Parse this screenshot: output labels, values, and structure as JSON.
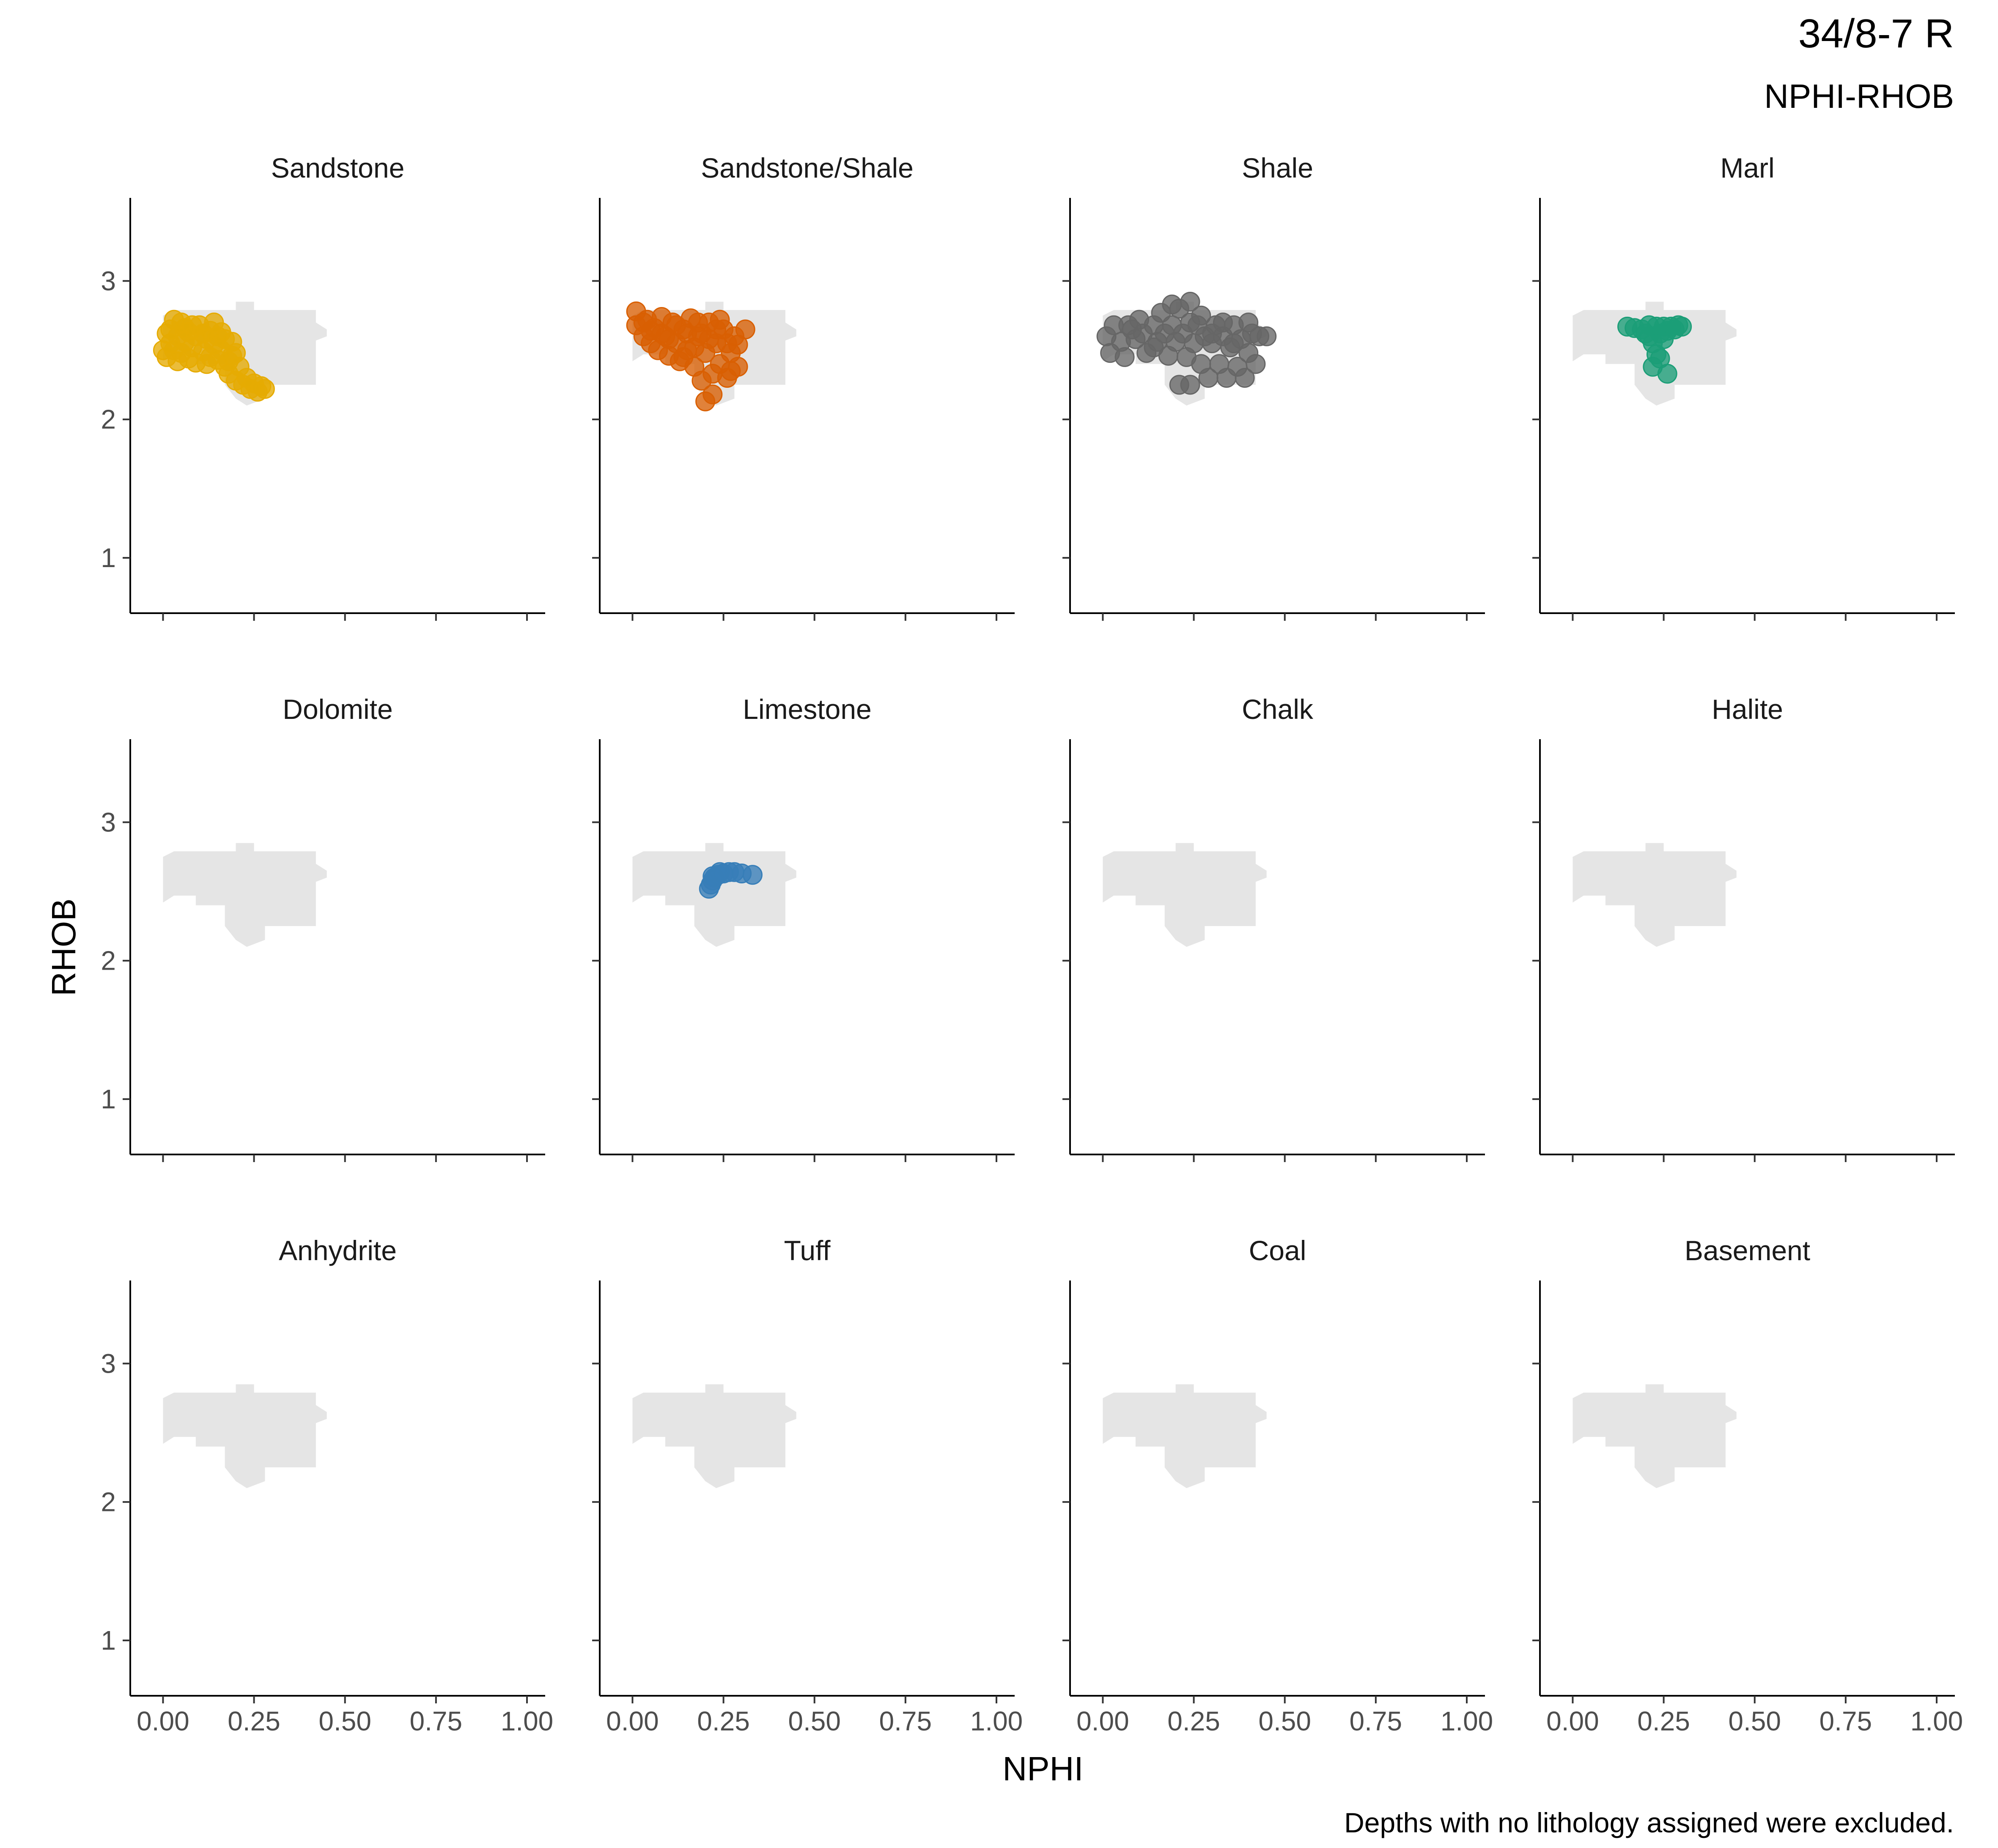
{
  "title": "34/8-7 R",
  "subtitle": "NPHI-RHOB",
  "caption": "Depths with no lithology assigned were excluded.",
  "chart_data": {
    "type": "scatter",
    "layout": "facet_wrap 3 rows x 4 columns",
    "xlabel": "NPHI",
    "ylabel": "RHOB",
    "xlim": [
      -0.09,
      1.05
    ],
    "ylim": [
      3.6,
      0.6
    ],
    "y_reversed": true,
    "x_ticks": [
      "0.00",
      "0.25",
      "0.50",
      "0.75",
      "1.00"
    ],
    "x_tick_values": [
      0,
      0.25,
      0.5,
      0.75,
      1.0
    ],
    "y_ticks": [
      "1",
      "2",
      "3"
    ],
    "y_tick_values": [
      1,
      2,
      3
    ],
    "grid": false,
    "background_region": {
      "color": "#e5e5e5",
      "description_points": [
        [
          0.0,
          2.42
        ],
        [
          0.0,
          2.75
        ],
        [
          0.03,
          2.79
        ],
        [
          0.2,
          2.79
        ],
        [
          0.2,
          2.85
        ],
        [
          0.25,
          2.85
        ],
        [
          0.25,
          2.79
        ],
        [
          0.42,
          2.79
        ],
        [
          0.42,
          2.7
        ],
        [
          0.45,
          2.65
        ],
        [
          0.45,
          2.6
        ],
        [
          0.42,
          2.57
        ],
        [
          0.42,
          2.25
        ],
        [
          0.28,
          2.25
        ],
        [
          0.28,
          2.15
        ],
        [
          0.23,
          2.1
        ],
        [
          0.2,
          2.15
        ],
        [
          0.17,
          2.25
        ],
        [
          0.17,
          2.4
        ],
        [
          0.09,
          2.4
        ],
        [
          0.09,
          2.47
        ],
        [
          0.03,
          2.47
        ]
      ]
    },
    "panels": [
      {
        "name": "Sandstone",
        "color": "#E6AB02",
        "points": [
          [
            0.01,
            2.45
          ],
          [
            0.02,
            2.55
          ],
          [
            0.02,
            2.65
          ],
          [
            0.03,
            2.5
          ],
          [
            0.04,
            2.6
          ],
          [
            0.05,
            2.48
          ],
          [
            0.05,
            2.7
          ],
          [
            0.06,
            2.56
          ],
          [
            0.07,
            2.44
          ],
          [
            0.07,
            2.63
          ],
          [
            0.08,
            2.52
          ],
          [
            0.09,
            2.41
          ],
          [
            0.09,
            2.6
          ],
          [
            0.1,
            2.68
          ],
          [
            0.11,
            2.49
          ],
          [
            0.12,
            2.58
          ],
          [
            0.13,
            2.45
          ],
          [
            0.13,
            2.64
          ],
          [
            0.14,
            2.54
          ],
          [
            0.15,
            2.43
          ],
          [
            0.15,
            2.6
          ],
          [
            0.16,
            2.5
          ],
          [
            0.17,
            2.38
          ],
          [
            0.17,
            2.58
          ],
          [
            0.18,
            2.33
          ],
          [
            0.19,
            2.46
          ],
          [
            0.2,
            2.28
          ],
          [
            0.21,
            2.38
          ],
          [
            0.22,
            2.25
          ],
          [
            0.23,
            2.3
          ],
          [
            0.24,
            2.22
          ],
          [
            0.25,
            2.26
          ],
          [
            0.26,
            2.2
          ],
          [
            0.27,
            2.24
          ],
          [
            0.28,
            2.22
          ],
          [
            0.03,
            2.72
          ],
          [
            0.06,
            2.66
          ],
          [
            0.11,
            2.62
          ],
          [
            0.14,
            2.7
          ],
          [
            0.12,
            2.4
          ],
          [
            0.16,
            2.63
          ],
          [
            0.19,
            2.56
          ],
          [
            0.0,
            2.5
          ],
          [
            0.01,
            2.62
          ],
          [
            0.08,
            2.68
          ],
          [
            0.18,
            2.42
          ],
          [
            0.2,
            2.48
          ],
          [
            0.04,
            2.42
          ]
        ]
      },
      {
        "name": "Sandstone/Shale",
        "color": "#D95F02",
        "points": [
          [
            0.01,
            2.68
          ],
          [
            0.01,
            2.78
          ],
          [
            0.03,
            2.6
          ],
          [
            0.04,
            2.72
          ],
          [
            0.05,
            2.55
          ],
          [
            0.06,
            2.66
          ],
          [
            0.07,
            2.5
          ],
          [
            0.08,
            2.74
          ],
          [
            0.09,
            2.6
          ],
          [
            0.1,
            2.46
          ],
          [
            0.11,
            2.7
          ],
          [
            0.12,
            2.55
          ],
          [
            0.13,
            2.42
          ],
          [
            0.14,
            2.65
          ],
          [
            0.15,
            2.5
          ],
          [
            0.16,
            2.73
          ],
          [
            0.17,
            2.38
          ],
          [
            0.18,
            2.6
          ],
          [
            0.19,
            2.28
          ],
          [
            0.2,
            2.48
          ],
          [
            0.21,
            2.7
          ],
          [
            0.22,
            2.33
          ],
          [
            0.22,
            2.18
          ],
          [
            0.23,
            2.55
          ],
          [
            0.24,
            2.4
          ],
          [
            0.25,
            2.65
          ],
          [
            0.26,
            2.3
          ],
          [
            0.27,
            2.48
          ],
          [
            0.28,
            2.6
          ],
          [
            0.29,
            2.38
          ],
          [
            0.31,
            2.65
          ],
          [
            0.2,
            2.13
          ],
          [
            0.19,
            2.62
          ],
          [
            0.24,
            2.72
          ],
          [
            0.15,
            2.62
          ],
          [
            0.12,
            2.68
          ],
          [
            0.05,
            2.64
          ],
          [
            0.17,
            2.52
          ],
          [
            0.1,
            2.58
          ],
          [
            0.26,
            2.55
          ],
          [
            0.03,
            2.7
          ],
          [
            0.08,
            2.62
          ],
          [
            0.21,
            2.58
          ],
          [
            0.29,
            2.54
          ],
          [
            0.14,
            2.45
          ],
          [
            0.18,
            2.7
          ],
          [
            0.23,
            2.65
          ],
          [
            0.27,
            2.35
          ]
        ]
      },
      {
        "name": "Shale",
        "color": "#666666",
        "points": [
          [
            0.01,
            2.6
          ],
          [
            0.02,
            2.48
          ],
          [
            0.03,
            2.68
          ],
          [
            0.05,
            2.56
          ],
          [
            0.06,
            2.45
          ],
          [
            0.07,
            2.68
          ],
          [
            0.09,
            2.58
          ],
          [
            0.1,
            2.72
          ],
          [
            0.11,
            2.62
          ],
          [
            0.12,
            2.48
          ],
          [
            0.14,
            2.68
          ],
          [
            0.15,
            2.56
          ],
          [
            0.16,
            2.77
          ],
          [
            0.17,
            2.62
          ],
          [
            0.18,
            2.46
          ],
          [
            0.19,
            2.68
          ],
          [
            0.2,
            2.56
          ],
          [
            0.21,
            2.8
          ],
          [
            0.22,
            2.62
          ],
          [
            0.23,
            2.45
          ],
          [
            0.24,
            2.7
          ],
          [
            0.24,
            2.85
          ],
          [
            0.25,
            2.55
          ],
          [
            0.26,
            2.68
          ],
          [
            0.27,
            2.4
          ],
          [
            0.28,
            2.6
          ],
          [
            0.29,
            2.3
          ],
          [
            0.3,
            2.55
          ],
          [
            0.31,
            2.68
          ],
          [
            0.32,
            2.4
          ],
          [
            0.33,
            2.6
          ],
          [
            0.34,
            2.3
          ],
          [
            0.35,
            2.52
          ],
          [
            0.36,
            2.68
          ],
          [
            0.37,
            2.38
          ],
          [
            0.38,
            2.58
          ],
          [
            0.39,
            2.3
          ],
          [
            0.4,
            2.48
          ],
          [
            0.41,
            2.62
          ],
          [
            0.42,
            2.4
          ],
          [
            0.43,
            2.6
          ],
          [
            0.45,
            2.6
          ],
          [
            0.21,
            2.25
          ],
          [
            0.24,
            2.25
          ],
          [
            0.19,
            2.83
          ],
          [
            0.14,
            2.52
          ],
          [
            0.3,
            2.62
          ],
          [
            0.36,
            2.55
          ],
          [
            0.27,
            2.75
          ],
          [
            0.33,
            2.7
          ],
          [
            0.4,
            2.7
          ],
          [
            0.08,
            2.65
          ]
        ]
      },
      {
        "name": "Marl",
        "color": "#1B9E77",
        "points": [
          [
            0.15,
            2.67
          ],
          [
            0.17,
            2.66
          ],
          [
            0.19,
            2.65
          ],
          [
            0.2,
            2.62
          ],
          [
            0.21,
            2.6
          ],
          [
            0.22,
            2.55
          ],
          [
            0.22,
            2.38
          ],
          [
            0.23,
            2.47
          ],
          [
            0.24,
            2.62
          ],
          [
            0.25,
            2.67
          ],
          [
            0.26,
            2.33
          ],
          [
            0.26,
            2.64
          ],
          [
            0.27,
            2.67
          ],
          [
            0.28,
            2.65
          ],
          [
            0.29,
            2.68
          ],
          [
            0.3,
            2.67
          ],
          [
            0.23,
            2.67
          ],
          [
            0.21,
            2.68
          ],
          [
            0.25,
            2.58
          ],
          [
            0.24,
            2.44
          ]
        ]
      },
      {
        "name": "Dolomite",
        "color": "#666666",
        "points": []
      },
      {
        "name": "Limestone",
        "color": "#377EB8",
        "points": [
          [
            0.21,
            2.52
          ],
          [
            0.215,
            2.55
          ],
          [
            0.22,
            2.58
          ],
          [
            0.225,
            2.6
          ],
          [
            0.235,
            2.62
          ],
          [
            0.25,
            2.63
          ],
          [
            0.265,
            2.64
          ],
          [
            0.28,
            2.64
          ],
          [
            0.3,
            2.63
          ],
          [
            0.33,
            2.62
          ],
          [
            0.22,
            2.61
          ],
          [
            0.24,
            2.64
          ]
        ]
      },
      {
        "name": "Chalk",
        "color": "#666666",
        "points": []
      },
      {
        "name": "Halite",
        "color": "#666666",
        "points": []
      },
      {
        "name": "Anhydrite",
        "color": "#666666",
        "points": []
      },
      {
        "name": "Tuff",
        "color": "#666666",
        "points": []
      },
      {
        "name": "Coal",
        "color": "#666666",
        "points": []
      },
      {
        "name": "Basement",
        "color": "#666666",
        "points": []
      }
    ]
  }
}
